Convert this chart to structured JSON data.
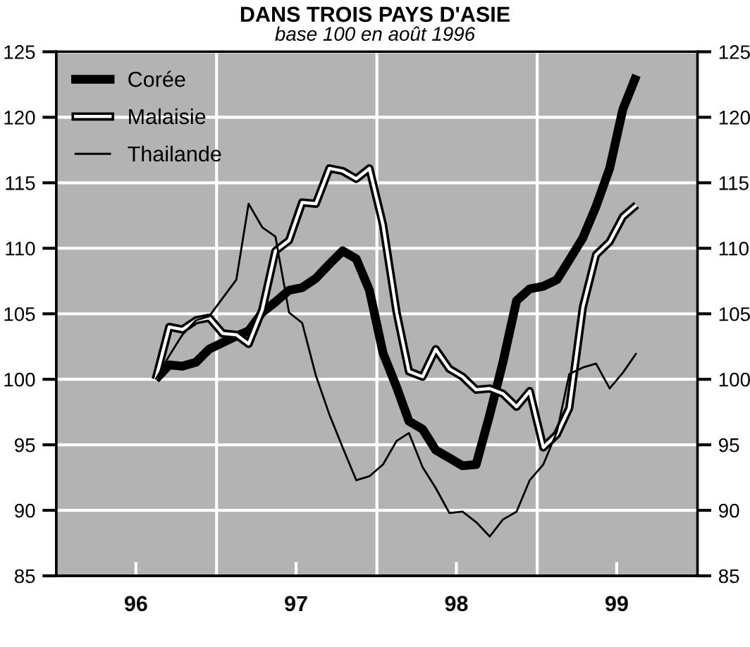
{
  "chart_data": {
    "type": "line",
    "title": "DANS TROIS PAYS D'ASIE",
    "subtitle": "base 100 en août 1996",
    "x": [
      "1996-08-15",
      "1996-09-15",
      "1996-10-15",
      "1996-11-15",
      "1996-12-15",
      "1997-01-15",
      "1997-02-15",
      "1997-03-15",
      "1997-04-15",
      "1997-05-15",
      "1997-06-15",
      "1997-07-15",
      "1997-08-15",
      "1997-09-15",
      "1997-10-15",
      "1997-11-15",
      "1997-12-15",
      "1998-01-15",
      "1998-02-15",
      "1998-03-15",
      "1998-04-15",
      "1998-05-15",
      "1998-06-15",
      "1998-07-15",
      "1998-08-15",
      "1998-09-15",
      "1998-10-15",
      "1998-11-15",
      "1998-12-15",
      "1999-01-15",
      "1999-02-15",
      "1999-03-15",
      "1999-04-15",
      "1999-05-15",
      "1999-06-15",
      "1999-07-15",
      "1999-08-15"
    ],
    "series": [
      {
        "name": "Corée",
        "color": "#000000",
        "values": [
          100,
          101.1,
          101.0,
          101.3,
          102.3,
          102.8,
          103.3,
          103.7,
          105.1,
          105.9,
          106.8,
          107.0,
          107.7,
          108.8,
          109.8,
          109.2,
          106.8,
          102.0,
          99.4,
          96.8,
          96.2,
          94.6,
          94.0,
          93.4,
          93.5,
          97.3,
          101.3,
          106.0,
          106.9,
          107.1,
          107.6,
          109.1,
          110.8,
          113.2,
          116.1,
          120.6,
          123.2
        ]
      },
      {
        "name": "Malaisie",
        "color": "#000000",
        "values": [
          100,
          104.0,
          103.8,
          104.5,
          104.7,
          103.5,
          103.4,
          102.7,
          105.3,
          109.8,
          110.6,
          113.5,
          113.4,
          116.1,
          115.9,
          115.3,
          116.1,
          111.8,
          105.1,
          100.6,
          100.2,
          102.3,
          100.8,
          100.2,
          99.2,
          99.3,
          98.9,
          97.9,
          99.1,
          94.8,
          95.8,
          97.8,
          105.5,
          109.5,
          110.5,
          112.4,
          113.3
        ]
      },
      {
        "name": "Thailande",
        "color": "#000000",
        "values": [
          100,
          101.8,
          103.4,
          104.5,
          104.8,
          106.2,
          107.6,
          113.4,
          111.6,
          110.9,
          105.1,
          104.3,
          100.3,
          97.3,
          94.8,
          92.3,
          92.6,
          93.5,
          95.3,
          95.9,
          93.3,
          91.7,
          89.8,
          89.9,
          89.1,
          88.0,
          89.3,
          89.9,
          92.3,
          93.5,
          96.0,
          100.4,
          100.9,
          101.2,
          99.3,
          100.5,
          102.0
        ]
      }
    ],
    "xlim": [
      "1996-01-01",
      "2000-01-01"
    ],
    "xticks": [
      {
        "value": "1996-07-01",
        "label": "96"
      },
      {
        "value": "1997-01-01",
        "label": null
      },
      {
        "value": "1997-07-01",
        "label": "97"
      },
      {
        "value": "1998-01-01",
        "label": null
      },
      {
        "value": "1998-07-01",
        "label": "98"
      },
      {
        "value": "1999-01-01",
        "label": null
      },
      {
        "value": "1999-07-01",
        "label": "99"
      }
    ],
    "ylim": [
      85,
      125
    ],
    "yticks": [
      85,
      90,
      95,
      100,
      105,
      110,
      115,
      120,
      125
    ],
    "y2lim": [
      85,
      125
    ],
    "y2ticks": [
      85,
      90,
      95,
      100,
      105,
      110,
      115,
      120,
      125
    ],
    "grid": true,
    "legend": "top left",
    "line_style": "solid",
    "marker": "none"
  }
}
